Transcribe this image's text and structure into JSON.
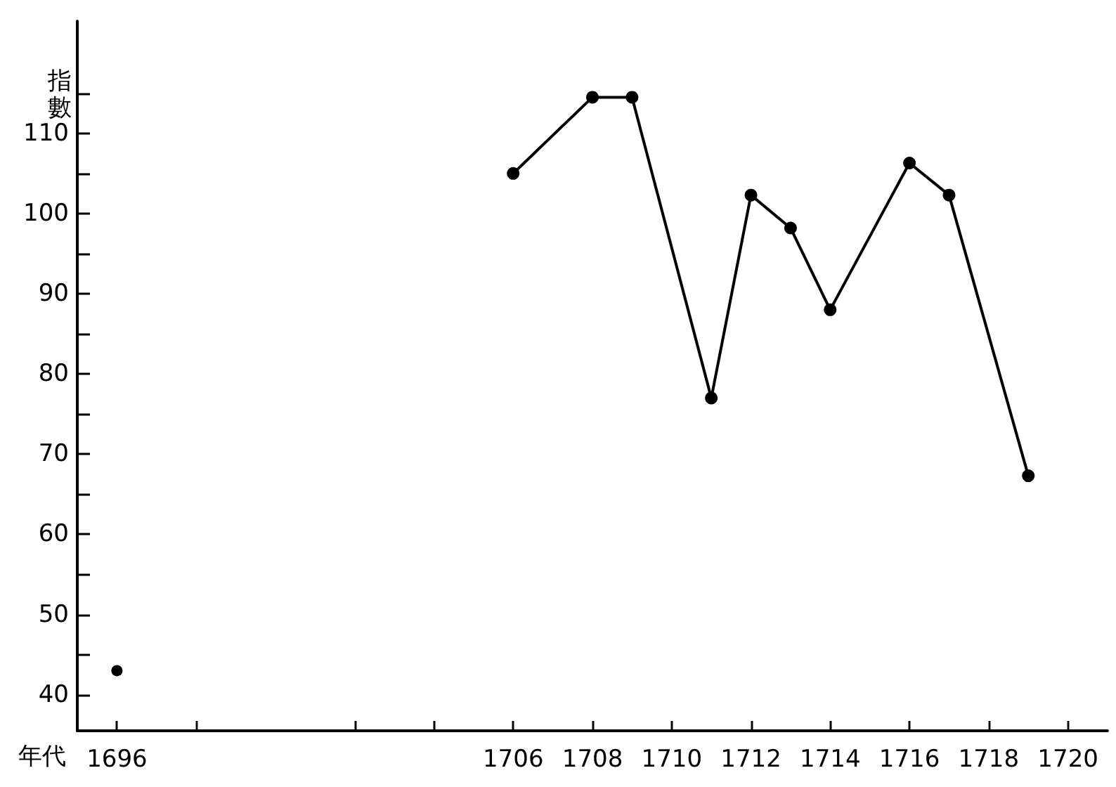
{
  "chart_data": {
    "type": "line",
    "xlabel": "年代",
    "ylabel": "指數",
    "xlim": [
      1695,
      1721
    ],
    "xticks": [
      1696,
      {
        "value": 1698,
        "label": null
      },
      {
        "value": 1702,
        "label": null
      },
      {
        "value": 1704,
        "label": null
      },
      1706,
      1708,
      1710,
      1712,
      1714,
      1716,
      1718,
      1720
    ],
    "ylim": [
      35.5,
      124
    ],
    "yticks": [
      40,
      {
        "value": 45,
        "label": null
      },
      50,
      {
        "value": 55,
        "label": null
      },
      60,
      {
        "value": 65,
        "label": null
      },
      70,
      {
        "value": 75,
        "label": null
      },
      80,
      {
        "value": 85,
        "label": null
      },
      90,
      {
        "value": 95,
        "label": null
      },
      100,
      {
        "value": 105,
        "label": null
      },
      110,
      {
        "value": 115,
        "label": null
      }
    ],
    "grid": false,
    "marker": "circle",
    "line_style": "solid",
    "series": [
      {
        "type": "scatter",
        "color": "#000000",
        "x": [
          1696
        ],
        "values": [
          43
        ]
      },
      {
        "type": "line",
        "color": "#000000",
        "x": [
          1706,
          1708,
          1709,
          1711,
          1712,
          1713,
          1714,
          1716,
          1717,
          1719
        ],
        "values": [
          105,
          114.5,
          114.5,
          77,
          102.3,
          98.2,
          88,
          106.3,
          102.3,
          67.3
        ]
      }
    ]
  }
}
